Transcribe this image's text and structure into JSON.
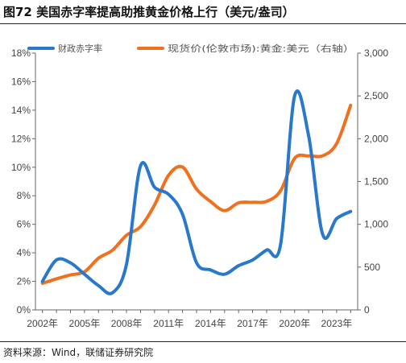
{
  "title": "图72 美国赤字率提高助推黄金价格上行（美元/盎司）",
  "source": "资料来源：Wind，联储证券研究院",
  "colors": {
    "series1": "#2878CC",
    "series2": "#F0701E",
    "axis": "#666666"
  },
  "chart_data": {
    "type": "line",
    "title": "",
    "xlabel": "",
    "ylabel": "",
    "x_ticks": [
      "2002年",
      "2005年",
      "2008年",
      "2011年",
      "2014年",
      "2017年",
      "2020年",
      "2023年"
    ],
    "x_range": [
      2001.5,
      2024.5
    ],
    "left_axis": {
      "range": [
        0,
        18
      ],
      "ticks": [
        0,
        2,
        4,
        6,
        8,
        10,
        12,
        14,
        16,
        18
      ],
      "labels": [
        "0%",
        "2%",
        "4%",
        "6%",
        "8%",
        "10%",
        "12%",
        "14%",
        "16%",
        "18%"
      ]
    },
    "right_axis": {
      "range": [
        0,
        3000
      ],
      "ticks": [
        0,
        500,
        1000,
        1500,
        2000,
        2500,
        3000
      ],
      "labels": [
        "0",
        "500",
        "1,000",
        "1,500",
        "2,000",
        "2,500",
        "3,000"
      ]
    },
    "legend_position": "top",
    "series": [
      {
        "name": "财政赤字率",
        "axis": "left",
        "x": [
          2002,
          2003,
          2004,
          2005,
          2006,
          2007,
          2008,
          2009,
          2010,
          2011,
          2012,
          2013,
          2014,
          2015,
          2016,
          2017,
          2018,
          2019,
          2020,
          2021,
          2022,
          2023,
          2024
        ],
        "y": [
          2.0,
          3.5,
          3.3,
          2.5,
          1.7,
          1.2,
          3.2,
          10.1,
          8.6,
          8.1,
          6.7,
          3.3,
          2.8,
          2.5,
          3.1,
          3.5,
          4.2,
          4.6,
          15.0,
          12.2,
          5.3,
          6.4,
          6.9
        ]
      },
      {
        "name": "现货价(伦敦市场):黄金:美元（右轴）",
        "axis": "right",
        "x": [
          2002,
          2003,
          2004,
          2005,
          2006,
          2007,
          2008,
          2009,
          2010,
          2011,
          2012,
          2013,
          2014,
          2015,
          2016,
          2017,
          2018,
          2019,
          2020,
          2021,
          2022,
          2023,
          2024
        ],
        "y": [
          310,
          363,
          409,
          445,
          604,
          697,
          872,
          972,
          1225,
          1572,
          1669,
          1411,
          1266,
          1160,
          1251,
          1257,
          1268,
          1393,
          1770,
          1799,
          1800,
          1943,
          2390
        ]
      }
    ]
  }
}
